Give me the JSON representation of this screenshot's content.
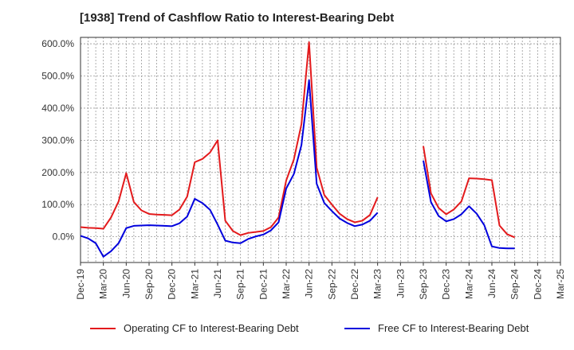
{
  "title": "[1938]  Trend of Cashflow Ratio to Interest-Bearing Debt",
  "chart_data": {
    "type": "line",
    "title": "[1938]  Trend of Cashflow Ratio to Interest-Bearing Debt",
    "xlabel": "",
    "ylabel": "",
    "ylim": [
      -80,
      620
    ],
    "y_ticks": [
      "600.0%",
      "500.0%",
      "400.0%",
      "300.0%",
      "200.0%",
      "100.0%",
      "0.0%"
    ],
    "x_ticks": [
      "Dec-19",
      "Mar-20",
      "Jun-20",
      "Sep-20",
      "Dec-20",
      "Mar-21",
      "Jun-21",
      "Sep-21",
      "Dec-21",
      "Mar-22",
      "Jun-22",
      "Sep-22",
      "Dec-22",
      "Mar-23",
      "Jun-23",
      "Sep-23",
      "Dec-23",
      "Mar-24",
      "Jun-24",
      "Sep-24",
      "Dec-24",
      "Mar-25"
    ],
    "grid": true,
    "legend_position": "bottom",
    "x": [
      "Dec-19",
      "Jan-20",
      "Feb-20",
      "Mar-20",
      "Apr-20",
      "May-20",
      "Jun-20",
      "Jul-20",
      "Aug-20",
      "Sep-20",
      "Oct-20",
      "Nov-20",
      "Dec-20",
      "Jan-21",
      "Feb-21",
      "Mar-21",
      "Apr-21",
      "May-21",
      "Jun-21",
      "Jul-21",
      "Aug-21",
      "Sep-21",
      "Oct-21",
      "Nov-21",
      "Dec-21",
      "Jan-22",
      "Feb-22",
      "Mar-22",
      "Apr-22",
      "May-22",
      "Jun-22",
      "Jul-22",
      "Aug-22",
      "Sep-22",
      "Oct-22",
      "Nov-22",
      "Dec-22",
      "Jan-23",
      "Feb-23",
      "Mar-23",
      "Apr-23",
      "May-23",
      "Jun-23",
      "Jul-23",
      "Aug-23",
      "Sep-23",
      "Oct-23",
      "Nov-23",
      "Dec-23",
      "Jan-24",
      "Feb-24",
      "Mar-24",
      "Apr-24",
      "May-24",
      "Jun-24",
      "Jul-24",
      "Aug-24",
      "Sep-24"
    ],
    "series": [
      {
        "name": "Operating CF to Interest-Bearing Debt",
        "color": "#e31a1c",
        "values": [
          30,
          28,
          27,
          25,
          60,
          110,
          198,
          108,
          82,
          71,
          69,
          68,
          67,
          85,
          125,
          232,
          242,
          262,
          300,
          50,
          18,
          5,
          12,
          15,
          18,
          30,
          60,
          175,
          240,
          350,
          605,
          215,
          130,
          100,
          72,
          55,
          45,
          50,
          68,
          123,
          null,
          null,
          null,
          null,
          null,
          282,
          135,
          90,
          70,
          85,
          110,
          182,
          181,
          179,
          176,
          35,
          8,
          -2
        ]
      },
      {
        "name": "Free CF to Interest-Bearing Debt",
        "color": "#0000dd",
        "values": [
          3,
          -5,
          -20,
          -62,
          -45,
          -20,
          27,
          34,
          35,
          36,
          35,
          34,
          33,
          42,
          63,
          118,
          105,
          84,
          38,
          -12,
          -18,
          -20,
          -7,
          1,
          7,
          20,
          45,
          150,
          195,
          285,
          487,
          165,
          105,
          80,
          57,
          43,
          33,
          38,
          50,
          75,
          null,
          null,
          null,
          null,
          null,
          237,
          108,
          65,
          48,
          55,
          70,
          95,
          72,
          36,
          -30,
          -35,
          -36,
          -36
        ]
      }
    ]
  }
}
